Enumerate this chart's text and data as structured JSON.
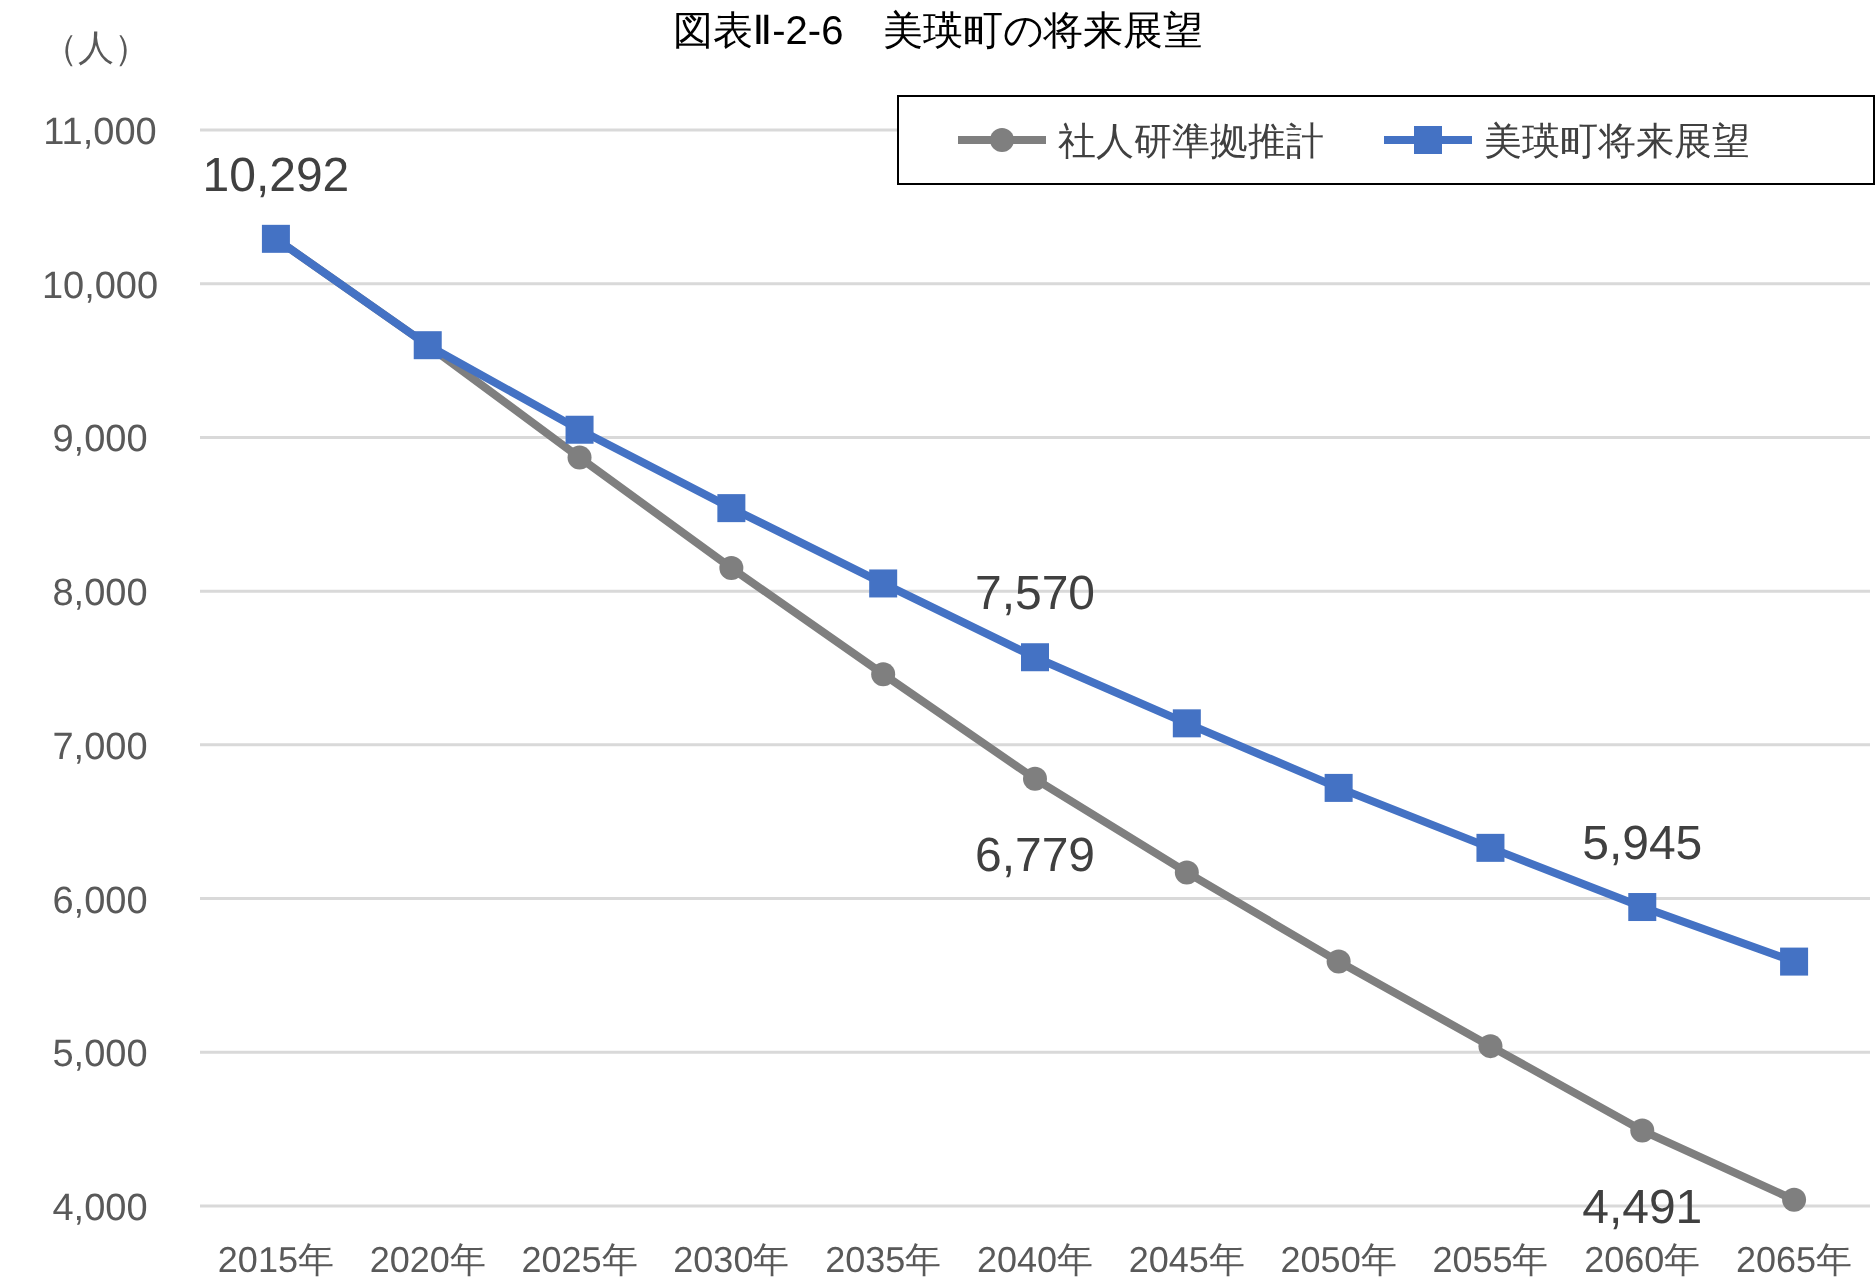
{
  "chart_data": {
    "type": "line",
    "title": "図表Ⅱ-2-6　美瑛町の将来展望",
    "ylabel": "（人）",
    "categories": [
      "2015年",
      "2020年",
      "2025年",
      "2030年",
      "2035年",
      "2040年",
      "2045年",
      "2050年",
      "2055年",
      "2060年",
      "2065年"
    ],
    "series": [
      {
        "name": "社人研準拠推計",
        "color": "#7f7f7f",
        "marker": "circle",
        "values": [
          10292,
          9600,
          8870,
          8150,
          7460,
          6779,
          6170,
          5590,
          5040,
          4491,
          4040
        ],
        "value_labels": [
          "10,292",
          null,
          null,
          null,
          null,
          "6,779",
          null,
          null,
          null,
          "4,491",
          null
        ]
      },
      {
        "name": "美瑛町将来展望",
        "color": "#4472c4",
        "marker": "square",
        "values": [
          10292,
          9600,
          9050,
          8540,
          8050,
          7570,
          7140,
          6720,
          6330,
          5945,
          5590
        ],
        "value_labels": [
          null,
          null,
          null,
          null,
          null,
          "7,570",
          null,
          null,
          null,
          "5,945",
          null
        ]
      }
    ],
    "ylim": [
      4000,
      11000
    ],
    "yticks": [
      {
        "value": 4000,
        "label": "4,000"
      },
      {
        "value": 5000,
        "label": "5,000"
      },
      {
        "value": 6000,
        "label": "6,000"
      },
      {
        "value": 7000,
        "label": "7,000"
      },
      {
        "value": 8000,
        "label": "8,000"
      },
      {
        "value": 9000,
        "label": "9,000"
      },
      {
        "value": 10000,
        "label": "10,000"
      },
      {
        "value": 11000,
        "label": "11,000"
      }
    ],
    "grid": "y",
    "legend": "top right"
  }
}
